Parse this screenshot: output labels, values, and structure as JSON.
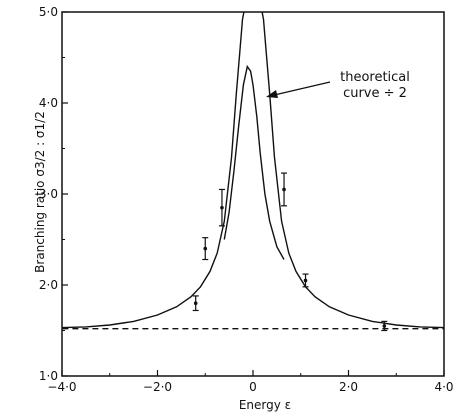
{
  "chart_data": {
    "type": "scatter",
    "xlabel": "Energy ε",
    "ylabel": "Branching ratio σ3/2 : σ1/2",
    "xlim": [
      -4.0,
      4.0
    ],
    "ylim": [
      1.0,
      5.0
    ],
    "x_ticks": [
      -4.0,
      -2.0,
      0,
      2.0,
      4.0
    ],
    "x_tick_labels": [
      "−4·0",
      "−2·0",
      "0",
      "2·0",
      "4·0"
    ],
    "y_ticks": [
      1.0,
      2.0,
      3.0,
      4.0,
      5.0
    ],
    "y_tick_labels": [
      "1·0",
      "2·0",
      "3·0",
      "4·0",
      "5·0"
    ],
    "grid": false,
    "annotation": [
      "theoretical",
      "curve ÷ 2"
    ],
    "series": [
      {
        "style": "solid",
        "x": [
          -4.2,
          -3.5,
          -3.0,
          -2.5,
          -2.0,
          -1.6,
          -1.3,
          -1.1,
          -0.9,
          -0.75,
          -0.6,
          -0.45,
          -0.35,
          -0.27,
          -0.22,
          -0.19
        ],
        "y": [
          1.53,
          1.54,
          1.56,
          1.6,
          1.67,
          1.76,
          1.87,
          1.98,
          2.15,
          2.35,
          2.7,
          3.4,
          4.1,
          4.6,
          4.92,
          5.0
        ]
      },
      {
        "style": "solid",
        "x": [
          0.19,
          0.22,
          0.27,
          0.35,
          0.45,
          0.6,
          0.75,
          0.9,
          1.1,
          1.3,
          1.6,
          2.0,
          2.5,
          3.0,
          3.5,
          4.2
        ],
        "y": [
          5.0,
          4.92,
          4.6,
          4.1,
          3.4,
          2.7,
          2.35,
          2.15,
          1.98,
          1.87,
          1.76,
          1.67,
          1.6,
          1.56,
          1.54,
          1.53
        ]
      },
      {
        "style": "solid",
        "x": [
          -0.6,
          -0.5,
          -0.4,
          -0.3,
          -0.2,
          -0.12,
          -0.05,
          0.0,
          0.08,
          0.15,
          0.25,
          0.35,
          0.5,
          0.65
        ],
        "y": [
          2.5,
          2.8,
          3.25,
          3.75,
          4.2,
          4.4,
          4.35,
          4.2,
          3.85,
          3.45,
          3.0,
          2.7,
          2.42,
          2.28
        ]
      },
      {
        "style": "dashed",
        "x": [
          -4.2,
          4.2
        ],
        "y": [
          1.52,
          1.52
        ]
      }
    ],
    "points": [
      {
        "x": -1.2,
        "y": 1.8,
        "err": 0.08
      },
      {
        "x": -1.0,
        "y": 2.4,
        "err": 0.12
      },
      {
        "x": -0.65,
        "y": 2.85,
        "err": 0.2
      },
      {
        "x": 0.65,
        "y": 3.05,
        "err": 0.18
      },
      {
        "x": 1.1,
        "y": 2.05,
        "err": 0.07
      },
      {
        "x": 2.75,
        "y": 1.55,
        "err": 0.05
      }
    ]
  }
}
